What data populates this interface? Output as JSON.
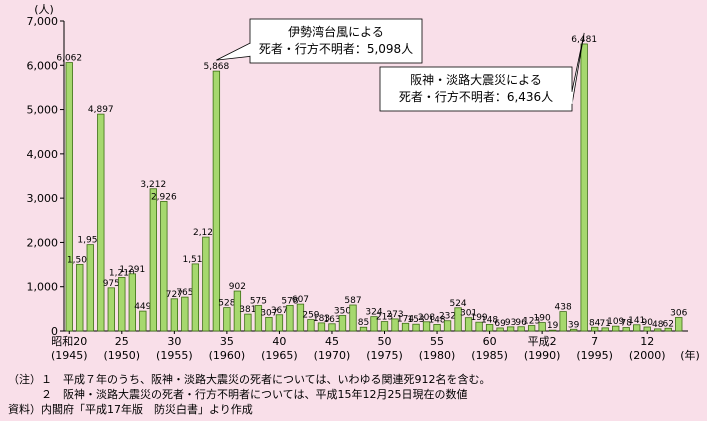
{
  "chart_data": {
    "type": "bar",
    "y_unit_label": "(人)",
    "x_unit_label": "(年)",
    "ylim": [
      0,
      7000
    ],
    "yticks": [
      "0",
      "1,000",
      "2,000",
      "3,000",
      "4,000",
      "5,000",
      "6,000",
      "7,000"
    ],
    "colors": {
      "bar_fill": "#a6d86e",
      "bar_stroke": "#3c6e14",
      "background": "#f9dfe9",
      "axis": "#000000"
    },
    "x_start_year": "昭和20年 (1945)",
    "x_end_year": "平成16年 (2004)",
    "values": [
      6062,
      1504,
      1950,
      4897,
      975,
      1210,
      1291,
      449,
      3212,
      2926,
      727,
      765,
      1515,
      2120,
      5868,
      528,
      902,
      381,
      575,
      307,
      367,
      578,
      607,
      259,
      183,
      163,
      350,
      587,
      85,
      324,
      213,
      273,
      174,
      153,
      208,
      148,
      232,
      524,
      301,
      199,
      148,
      69,
      93,
      96,
      123,
      190,
      19,
      438,
      39,
      6481,
      84,
      71,
      109,
      78,
      141,
      90,
      48,
      62,
      306
    ],
    "value_labels": [
      "6,062",
      "1,504",
      "1,950",
      "4,897",
      "975",
      "1,210",
      "1,291",
      "449",
      "3,212",
      "2,926",
      "727",
      "765",
      "1,515",
      "2,120",
      "5,868",
      "528",
      "902",
      "381",
      "575",
      "307",
      "367",
      "578",
      "607",
      "259",
      "183",
      "163",
      "350",
      "587",
      "85",
      "324",
      "213",
      "273",
      "174",
      "153",
      "208",
      "148",
      "232",
      "524",
      "301",
      "199",
      "148",
      "69",
      "93",
      "96",
      "123",
      "190",
      "19",
      "438",
      "39",
      "6,481",
      "84",
      "71",
      "109",
      "78",
      "141",
      "90",
      "48",
      "62",
      "306"
    ],
    "x_tick_labels": [
      {
        "top": "昭和20",
        "bottom": "(1945)"
      },
      {
        "top": "25",
        "bottom": "(1950)"
      },
      {
        "top": "30",
        "bottom": "(1955)"
      },
      {
        "top": "35",
        "bottom": "(1960)"
      },
      {
        "top": "40",
        "bottom": "(1965)"
      },
      {
        "top": "45",
        "bottom": "(1970)"
      },
      {
        "top": "50",
        "bottom": "(1975)"
      },
      {
        "top": "55",
        "bottom": "(1980)"
      },
      {
        "top": "60",
        "bottom": "(1985)"
      },
      {
        "top": "平成2",
        "bottom": "(1990)"
      },
      {
        "top": "7",
        "bottom": "(1995)"
      },
      {
        "top": "12",
        "bottom": "(2000)"
      }
    ],
    "annotations": [
      {
        "lines": [
          "伊勢湾台風による",
          "死者・行方不明者：5,098人"
        ]
      },
      {
        "lines": [
          "阪神・淡路大震災による",
          "死者・行方不明者：6,436人"
        ]
      }
    ]
  },
  "notes": [
    "（注）１　平成７年のうち、阪神・淡路大震災の死者については、いわゆる関連死912名を含む。",
    "　　　２　阪神・淡路大震災の死者・行方不明者については、平成15年12月25日現在の数値",
    "資料）内閣府「平成17年版　防災白書」より作成"
  ]
}
